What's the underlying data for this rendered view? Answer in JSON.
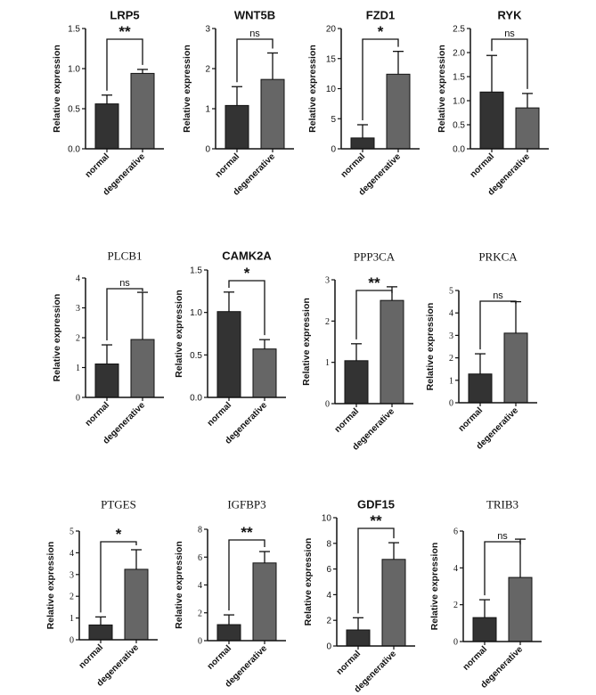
{
  "chart_data": [
    {
      "type": "bar",
      "title": "LRP5",
      "ylabel": "Relative expression",
      "categories": [
        "normal",
        "degenerative"
      ],
      "values": [
        0.56,
        0.94
      ],
      "errors": [
        0.11,
        0.05
      ],
      "ylim": [
        0,
        1.5
      ],
      "yticks": [
        0.0,
        0.5,
        1.0,
        1.5
      ],
      "tick_format": "fixed1",
      "significance": "**",
      "colors": [
        "#333333",
        "#666666"
      ]
    },
    {
      "type": "bar",
      "title": "WNT5B",
      "ylabel": "Relative expression",
      "categories": [
        "normal",
        "degenerative"
      ],
      "values": [
        1.08,
        1.73
      ],
      "errors": [
        0.47,
        0.66
      ],
      "ylim": [
        0,
        3
      ],
      "yticks": [
        0,
        1,
        2,
        3
      ],
      "tick_format": "int",
      "significance": "ns",
      "colors": [
        "#333333",
        "#666666"
      ]
    },
    {
      "type": "bar",
      "title": "FZD1",
      "ylabel": "Relative expression",
      "categories": [
        "normal",
        "degenerative"
      ],
      "values": [
        1.8,
        12.4
      ],
      "errors": [
        2.2,
        3.8
      ],
      "ylim": [
        0,
        20
      ],
      "yticks": [
        0,
        5,
        10,
        15,
        20
      ],
      "tick_format": "int",
      "significance": "*",
      "colors": [
        "#333333",
        "#666666"
      ]
    },
    {
      "type": "bar",
      "title": "RYK",
      "ylabel": "Relative expression",
      "categories": [
        "normal",
        "degenerative"
      ],
      "values": [
        1.18,
        0.85
      ],
      "errors": [
        0.76,
        0.3
      ],
      "ylim": [
        0,
        2.5
      ],
      "yticks": [
        0.0,
        0.5,
        1.0,
        1.5,
        2.0,
        2.5
      ],
      "tick_format": "fixed1",
      "significance": "ns",
      "colors": [
        "#333333",
        "#666666"
      ]
    },
    {
      "type": "bar",
      "title": "PLCB1",
      "ylabel": "Relative expression",
      "categories": [
        "normal",
        "degenerative"
      ],
      "values": [
        1.12,
        1.94
      ],
      "errors": [
        0.64,
        1.58
      ],
      "ylim": [
        0,
        4
      ],
      "yticks": [
        0,
        1,
        2,
        3,
        4
      ],
      "tick_format": "int",
      "significance": "ns",
      "serif": true,
      "colors": [
        "#333333",
        "#666666"
      ]
    },
    {
      "type": "bar",
      "title": "CAMK2A",
      "ylabel": "Relative expression",
      "categories": [
        "normal",
        "degenerative"
      ],
      "values": [
        1.01,
        0.57
      ],
      "errors": [
        0.23,
        0.11
      ],
      "ylim": [
        0,
        1.5
      ],
      "yticks": [
        0.0,
        0.5,
        1.0,
        1.5
      ],
      "tick_format": "fixed1",
      "significance": "*",
      "colors": [
        "#333333",
        "#666666"
      ]
    },
    {
      "type": "bar",
      "title": "PPP3CA",
      "ylabel": "Relative expression",
      "categories": [
        "normal",
        "degenerative"
      ],
      "values": [
        1.04,
        2.5
      ],
      "errors": [
        0.41,
        0.33
      ],
      "ylim": [
        0,
        3
      ],
      "yticks": [
        0,
        1,
        2,
        3
      ],
      "tick_format": "int",
      "significance": "**",
      "serif": true,
      "colors": [
        "#333333",
        "#666666"
      ]
    },
    {
      "type": "bar",
      "title": "PRKCA",
      "ylabel": "Relative expression",
      "categories": [
        "normal",
        "degenerative"
      ],
      "values": [
        1.28,
        3.1
      ],
      "errors": [
        0.9,
        1.4
      ],
      "ylim": [
        0,
        5
      ],
      "yticks": [
        0,
        1,
        2,
        3,
        4,
        5
      ],
      "tick_format": "int",
      "significance": "ns",
      "serif": true,
      "colors": [
        "#333333",
        "#666666"
      ]
    },
    {
      "type": "bar",
      "title": "PTGES",
      "ylabel": "Relative expression",
      "categories": [
        "normal",
        "degenerative"
      ],
      "values": [
        0.68,
        3.24
      ],
      "errors": [
        0.37,
        0.9
      ],
      "ylim": [
        0,
        5
      ],
      "yticks": [
        0,
        1,
        2,
        3,
        4,
        5
      ],
      "tick_format": "int",
      "significance": "*",
      "serif": true,
      "colors": [
        "#333333",
        "#666666"
      ]
    },
    {
      "type": "bar",
      "title": "IGFBP3",
      "ylabel": "Relative expression",
      "categories": [
        "normal",
        "degenerative"
      ],
      "values": [
        1.15,
        5.58
      ],
      "errors": [
        0.7,
        0.82
      ],
      "ylim": [
        0,
        8
      ],
      "yticks": [
        0,
        2,
        4,
        6,
        8
      ],
      "tick_format": "int",
      "significance": "**",
      "serif": true,
      "colors": [
        "#333333",
        "#666666"
      ]
    },
    {
      "type": "bar",
      "title": "GDF15",
      "ylabel": "Relative expression",
      "categories": [
        "normal",
        "degenerative"
      ],
      "values": [
        1.25,
        6.75
      ],
      "errors": [
        0.95,
        1.3
      ],
      "ylim": [
        0,
        10
      ],
      "yticks": [
        0,
        2,
        4,
        6,
        8,
        10
      ],
      "tick_format": "int",
      "significance": "**",
      "colors": [
        "#333333",
        "#666666"
      ]
    },
    {
      "type": "bar",
      "title": "TRIB3",
      "ylabel": "Relative expression",
      "categories": [
        "normal",
        "degenerative"
      ],
      "values": [
        1.3,
        3.48
      ],
      "errors": [
        0.97,
        2.08
      ],
      "ylim": [
        0,
        6
      ],
      "yticks": [
        0,
        2,
        4,
        6
      ],
      "tick_format": "int",
      "significance": "ns",
      "serif": true,
      "colors": [
        "#333333",
        "#666666"
      ]
    }
  ]
}
